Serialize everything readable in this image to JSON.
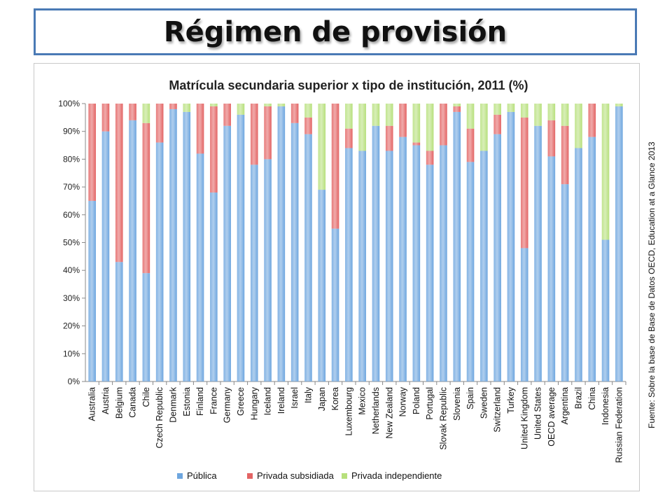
{
  "slide": {
    "title": "Régimen de provisión",
    "source_note": "Fuente: Sobre la base de Base de Datos OECD, Education at a Glance 2013"
  },
  "colors": {
    "publica": "#6ea6df",
    "privada_subsidiada": "#e36464",
    "privada_independiente": "#b7e07c"
  },
  "chart_data": {
    "type": "bar",
    "stacked": true,
    "title": "Matrícula secundaria superior x tipo de institución, 2011 (%)",
    "ylim": [
      0,
      100
    ],
    "y_ticks": [
      "0%",
      "10%",
      "20%",
      "30%",
      "40%",
      "50%",
      "60%",
      "70%",
      "80%",
      "90%",
      "100%"
    ],
    "legend_position": "bottom",
    "categories": [
      "Australia",
      "Austria",
      "Belgium",
      "Canada",
      "Chile",
      "Czech Republic",
      "Denmark",
      "Estonia",
      "Finland",
      "France",
      "Germany",
      "Greece",
      "Hungary",
      "Iceland",
      "Ireland",
      "Israel",
      "Italy",
      "Japan",
      "Korea",
      "Luxembourg",
      "Mexico",
      "Netherlands",
      "New Zealand",
      "Norway",
      "Poland",
      "Portugal",
      "Slovak Republic",
      "Slovenia",
      "Spain",
      "Sweden",
      "Switzerland",
      "Turkey",
      "United Kingdom",
      "United States",
      "OECD average",
      "Argentina",
      "Brazil",
      "China",
      "Indonesia",
      "Russian Federation"
    ],
    "series": [
      {
        "name": "Pública",
        "color_key": "publica",
        "values": [
          65,
          90,
          43,
          94,
          39,
          86,
          98,
          97,
          82,
          68,
          92,
          96,
          78,
          80,
          99,
          93,
          89,
          69,
          55,
          84,
          83,
          92,
          83,
          88,
          85,
          78,
          85,
          97,
          79,
          83,
          89,
          97,
          48,
          92,
          81,
          71,
          84,
          88,
          51,
          99
        ]
      },
      {
        "name": "Privada subsidiada",
        "color_key": "privada_subsidiada",
        "values": [
          35,
          10,
          57,
          6,
          54,
          14,
          2,
          0,
          18,
          31,
          8,
          0,
          22,
          19,
          0,
          7,
          6,
          0,
          45,
          7,
          0,
          0,
          9,
          12,
          1,
          5,
          15,
          2,
          12,
          0,
          7,
          0,
          47,
          0,
          13,
          21,
          0,
          12,
          0,
          0
        ]
      },
      {
        "name": "Privada independiente",
        "color_key": "privada_independiente",
        "values": [
          0,
          0,
          0,
          0,
          7,
          0,
          0,
          3,
          0,
          1,
          0,
          4,
          0,
          1,
          1,
          0,
          5,
          31,
          0,
          9,
          17,
          8,
          8,
          0,
          14,
          17,
          0,
          1,
          9,
          17,
          4,
          3,
          5,
          8,
          6,
          8,
          16,
          0,
          49,
          1
        ]
      }
    ]
  }
}
